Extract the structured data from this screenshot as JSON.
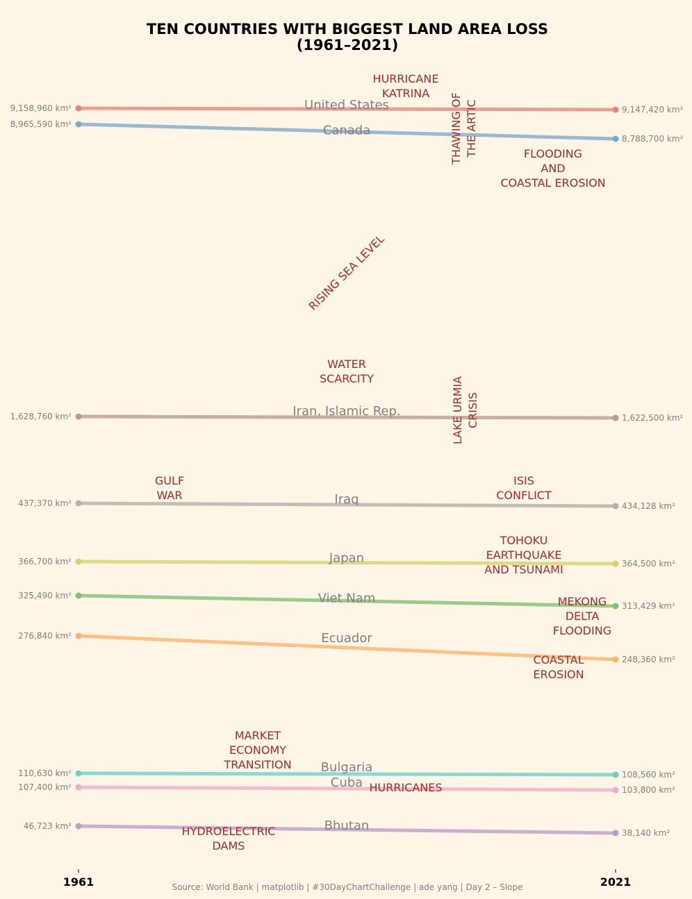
{
  "chart_data": {
    "type": "line",
    "title": "TEN COUNTRIES WITH BIGGEST LAND AREA LOSS\n(1961–2021)",
    "source": "Source: World Bank | matplotlib | #30DayChartChallenge | ade yang | Day 2 – Slope",
    "x": [
      "1961",
      "2021"
    ],
    "series": [
      {
        "name": "United States",
        "values": [
          9158960,
          9147420
        ],
        "labels": [
          "9,158,960 km²",
          "9,147,420 km²"
        ],
        "color": "#e8857a"
      },
      {
        "name": "Canada",
        "values": [
          8965590,
          8788700
        ],
        "labels": [
          "8,965,590 km²",
          "8,788,700 km²"
        ],
        "color": "#7fa9c8"
      },
      {
        "name": "Iran, Islamic Rep.",
        "values": [
          1628760,
          1622500
        ],
        "labels": [
          "1,628,760 km²",
          "1,622,500 km²"
        ],
        "color": "#b99b8e"
      },
      {
        "name": "Iraq",
        "values": [
          437370,
          434128
        ],
        "labels": [
          "437,370 km²",
          "434,128 km²"
        ],
        "color": "#b2afaa"
      },
      {
        "name": "Japan",
        "values": [
          366700,
          364500
        ],
        "labels": [
          "366,700 km²",
          "364,500 km²"
        ],
        "color": "#d2d36a"
      },
      {
        "name": "Viet Nam",
        "values": [
          325490,
          313429
        ],
        "labels": [
          "325,490 km²",
          "313,429 km²"
        ],
        "color": "#7fc071"
      },
      {
        "name": "Ecuador",
        "values": [
          276840,
          248360
        ],
        "labels": [
          "276,840 km²",
          "248,360 km²"
        ],
        "color": "#fdb36a"
      },
      {
        "name": "Bulgaria",
        "values": [
          110630,
          108560
        ],
        "labels": [
          "110,630 km²",
          "108,560 km²"
        ],
        "color": "#6dcfca"
      },
      {
        "name": "Cuba",
        "values": [
          107400,
          103800
        ],
        "labels": [
          "107,400 km²",
          "103,800 km²"
        ],
        "color": "#eeaccd"
      },
      {
        "name": "Bhutan",
        "values": [
          46723,
          38140
        ],
        "labels": [
          "46,723 km²",
          "38,140 km²"
        ],
        "color": "#be9dc6"
      }
    ],
    "annotations": [
      {
        "text": "HURRICANE\nKATRINA",
        "rotation": 0
      },
      {
        "text": "THAWING OF\nTHE ARTIC",
        "rotation": 90
      },
      {
        "text": "FLOODING\nAND\nCOASTAL EROSION",
        "rotation": 0
      },
      {
        "text": "RISING SEA LEVEL",
        "rotation": 45
      },
      {
        "text": "WATER\nSCARCITY",
        "rotation": 0
      },
      {
        "text": "LAKE URMIA\nCRISIS",
        "rotation": 90
      },
      {
        "text": "GULF\nWAR",
        "rotation": 0
      },
      {
        "text": "ISIS\nCONFLICT",
        "rotation": 0
      },
      {
        "text": "TOHOKU\nEARTHQUAKE\nAND TSUNAMI",
        "rotation": 0
      },
      {
        "text": "MEKONG\nDELTA\nFLOODING",
        "rotation": 0
      },
      {
        "text": "COASTAL\nEROSION",
        "rotation": 0
      },
      {
        "text": "MARKET\nECONOMY\nTRANSITION",
        "rotation": 0
      },
      {
        "text": "HURRICANES",
        "rotation": 0
      },
      {
        "text": "HYDROELECTRIC\nDAMS",
        "rotation": 0
      }
    ],
    "grid": false,
    "legend": "none"
  }
}
